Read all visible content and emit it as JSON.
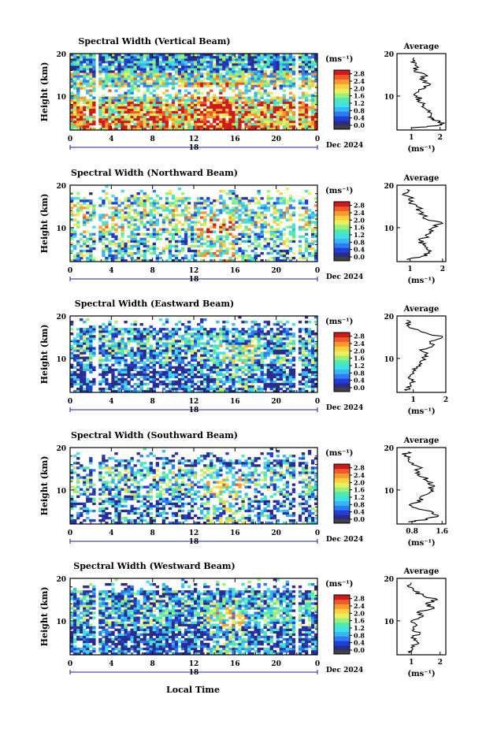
{
  "figure": {
    "xlabel": "Local Time",
    "date_label": "Dec 2024",
    "units_label": "(ms⁻¹)",
    "avg_title": "Average",
    "avg_xlabel": "(ms⁻¹)",
    "ylabel": "Height (km)"
  },
  "colors": {
    "colormap": [
      "#2b2b8c",
      "#1f3fd6",
      "#2f7bf2",
      "#38b6f5",
      "#3fe0e8",
      "#4fe8b0",
      "#9af07a",
      "#e8f060",
      "#f9d040",
      "#f89a30",
      "#ef5a2a",
      "#d01a1a"
    ],
    "below_scale": "#404040"
  },
  "chart_data": [
    {
      "type": "heatmap",
      "title": "Spectral Width (Vertical Beam)",
      "xlabel": "Local Time",
      "ylabel": "Height (km)",
      "xlim": [
        0,
        24
      ],
      "ylim": [
        2,
        20
      ],
      "xticks": [
        "0",
        "4",
        "8",
        "12",
        "16",
        "20",
        "0"
      ],
      "yticks": [
        "20",
        "10"
      ],
      "day_label": "18",
      "date_label": "Dec 2024",
      "colorbar": {
        "label": "(ms⁻¹)",
        "ticks": [
          "2.8",
          "2.4",
          "2.0",
          "1.6",
          "1.2",
          "0.8",
          "0.4",
          "0.0"
        ],
        "range": [
          0,
          3
        ]
      },
      "pattern": {
        "high_low": 0.75,
        "mid": 0.5,
        "top": 0.25,
        "coverage": 0.9,
        "burst_t": 14
      },
      "average": {
        "title": "Average",
        "xlabel": "(ms⁻¹)",
        "xlim": [
          0.5,
          2.2
        ],
        "xticks": [
          "1",
          "2"
        ],
        "yticks": [
          "20",
          "10"
        ],
        "height": [
          2.5,
          3,
          3.5,
          4,
          4.5,
          5,
          6,
          7,
          8,
          9,
          10,
          11,
          12,
          13,
          14,
          15,
          16,
          17,
          18,
          19
        ],
        "value": [
          1.0,
          1.9,
          2.1,
          2.0,
          1.8,
          1.6,
          1.7,
          1.5,
          1.4,
          1.3,
          1.2,
          1.25,
          1.5,
          1.6,
          1.3,
          1.5,
          1.1,
          1.2,
          1.0,
          1.1
        ]
      }
    },
    {
      "type": "heatmap",
      "title": "Spectral Width (Northward Beam)",
      "xlabel": "Local Time",
      "ylabel": "Height (km)",
      "xlim": [
        0,
        24
      ],
      "ylim": [
        2,
        20
      ],
      "xticks": [
        "0",
        "4",
        "8",
        "12",
        "16",
        "20",
        "0"
      ],
      "yticks": [
        "20",
        "10"
      ],
      "day_label": "18",
      "date_label": "Dec 2024",
      "colorbar": {
        "label": "(ms⁻¹)",
        "ticks": [
          "2.8",
          "2.4",
          "2.0",
          "1.6",
          "1.2",
          "0.8",
          "0.4",
          "0.0"
        ],
        "range": [
          0,
          3
        ]
      },
      "pattern": {
        "high_low": 0.35,
        "mid": 0.5,
        "top": 0.4,
        "coverage": 0.55,
        "burst_t": 14
      },
      "average": {
        "title": "Average",
        "xlabel": "(ms⁻¹)",
        "xlim": [
          0.6,
          2.1
        ],
        "xticks": [
          "1",
          "2"
        ],
        "yticks": [
          "20",
          "10"
        ],
        "height": [
          2.5,
          3,
          4,
          5,
          6,
          7,
          8,
          9,
          10,
          11,
          12,
          13,
          14,
          15,
          16,
          17,
          18,
          19
        ],
        "value": [
          0.9,
          1.3,
          1.6,
          1.5,
          1.4,
          1.3,
          1.5,
          1.6,
          1.7,
          2.0,
          1.5,
          1.4,
          1.3,
          1.2,
          1.0,
          1.1,
          0.8,
          0.9
        ]
      }
    },
    {
      "type": "heatmap",
      "title": "Spectral Width (Eastward Beam)",
      "xlabel": "Local Time",
      "ylabel": "Height (km)",
      "xlim": [
        0,
        24
      ],
      "ylim": [
        2,
        20
      ],
      "xticks": [
        "0",
        "4",
        "8",
        "12",
        "16",
        "20",
        "0"
      ],
      "yticks": [
        "20",
        "10"
      ],
      "day_label": "18",
      "date_label": "Dec 2024",
      "colorbar": {
        "label": "(ms⁻¹)",
        "ticks": [
          "2.8",
          "2.4",
          "2.0",
          "1.6",
          "1.2",
          "0.8",
          "0.4",
          "0.0"
        ],
        "range": [
          0,
          3
        ]
      },
      "pattern": {
        "high_low": 0.12,
        "mid": 0.3,
        "top": 0.2,
        "coverage": 0.75,
        "burst_t": 16
      },
      "average": {
        "title": "Average",
        "xlabel": "(ms⁻¹)",
        "xlim": [
          0.5,
          2.0
        ],
        "xticks": [
          "1",
          "2"
        ],
        "yticks": [
          "20",
          "10"
        ],
        "height": [
          2.5,
          3,
          4,
          5,
          6,
          7,
          8,
          9,
          10,
          11,
          12,
          13,
          14,
          15,
          16,
          17,
          18,
          19
        ],
        "value": [
          0.8,
          0.9,
          0.9,
          1.0,
          0.9,
          1.0,
          1.1,
          1.2,
          1.3,
          1.4,
          1.2,
          1.6,
          1.5,
          1.9,
          1.4,
          1.0,
          0.9,
          0.8
        ]
      }
    },
    {
      "type": "heatmap",
      "title": "Spectral Width (Southward Beam)",
      "xlabel": "Local Time",
      "ylabel": "Height (km)",
      "xlim": [
        0,
        24
      ],
      "ylim": [
        2,
        20
      ],
      "xticks": [
        "0",
        "4",
        "8",
        "12",
        "16",
        "20",
        "0"
      ],
      "yticks": [
        "20",
        "10"
      ],
      "day_label": "18",
      "date_label": "Dec 2024",
      "colorbar": {
        "label": "(ms⁻¹)",
        "ticks": [
          "2.8",
          "2.4",
          "2.0",
          "1.6",
          "1.2",
          "0.8",
          "0.4",
          "0.0"
        ],
        "range": [
          0,
          3
        ]
      },
      "pattern": {
        "high_low": 0.2,
        "mid": 0.35,
        "top": 0.15,
        "coverage": 0.55,
        "burst_t": 15
      },
      "average": {
        "title": "Average",
        "xlabel": "(ms⁻¹)",
        "xlim": [
          0.4,
          1.7
        ],
        "xticks": [
          "0.8",
          "1.6"
        ],
        "yticks": [
          "20",
          "10"
        ],
        "height": [
          2.5,
          3,
          4,
          5,
          6,
          7,
          8,
          9,
          10,
          11,
          12,
          13,
          14,
          15,
          16,
          17,
          18,
          19
        ],
        "value": [
          0.7,
          1.2,
          1.5,
          1.3,
          0.8,
          0.9,
          1.0,
          1.2,
          1.3,
          1.4,
          1.2,
          1.1,
          0.9,
          1.0,
          0.8,
          0.7,
          0.6,
          0.7
        ]
      }
    },
    {
      "type": "heatmap",
      "title": "Spectral Width (Westward Beam)",
      "xlabel": "Local Time",
      "ylabel": "Height (km)",
      "xlim": [
        0,
        24
      ],
      "ylim": [
        2,
        20
      ],
      "xticks": [
        "0",
        "4",
        "8",
        "12",
        "16",
        "20",
        "0"
      ],
      "yticks": [
        "20",
        "10"
      ],
      "day_label": "18",
      "date_label": "Dec 2024",
      "colorbar": {
        "label": "(ms⁻¹)",
        "ticks": [
          "2.8",
          "2.4",
          "2.0",
          "1.6",
          "1.2",
          "0.8",
          "0.4",
          "0.0"
        ],
        "range": [
          0,
          3
        ]
      },
      "pattern": {
        "high_low": 0.12,
        "mid": 0.3,
        "top": 0.2,
        "coverage": 0.8,
        "burst_t": 15
      },
      "average": {
        "title": "Average",
        "xlabel": "(ms⁻¹)",
        "xlim": [
          0.5,
          2.2
        ],
        "xticks": [
          "1",
          "2"
        ],
        "yticks": [
          "20",
          "10"
        ],
        "height": [
          2.5,
          3,
          4,
          5,
          6,
          7,
          8,
          9,
          10,
          11,
          12,
          13,
          14,
          15,
          16,
          17,
          18,
          19
        ],
        "value": [
          0.9,
          1.0,
          1.1,
          1.2,
          1.0,
          1.3,
          1.1,
          1.2,
          1.0,
          1.4,
          1.2,
          1.8,
          1.5,
          1.9,
          1.4,
          1.1,
          0.9,
          1.0
        ]
      }
    }
  ]
}
